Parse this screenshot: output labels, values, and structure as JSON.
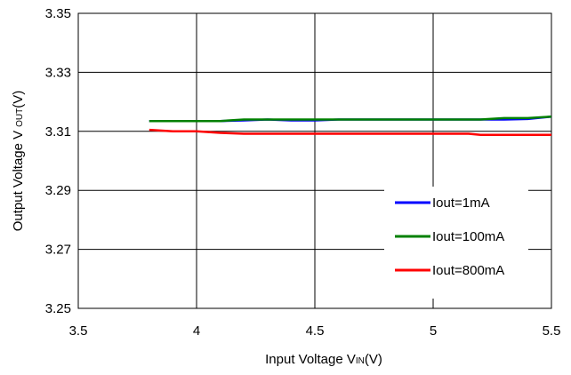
{
  "chart_data": {
    "type": "line",
    "xlabel": {
      "main": "Input Voltage V",
      "sub": "IN",
      "unit": "(V)"
    },
    "ylabel": {
      "main": "Output Voltage V",
      "sub": "OUT",
      "unit": "(V)"
    },
    "xlim": [
      3.5,
      5.5
    ],
    "ylim": [
      3.25,
      3.35
    ],
    "x_ticks": [
      3.5,
      4,
      4.5,
      5,
      5.5
    ],
    "x_tick_labels": [
      "3.5",
      "4",
      "4.5",
      "5",
      "5.5"
    ],
    "y_ticks": [
      3.25,
      3.27,
      3.29,
      3.31,
      3.33,
      3.35
    ],
    "y_tick_labels": [
      "3.25",
      "3.27",
      "3.29",
      "3.31",
      "3.33",
      "3.35"
    ],
    "grid": true,
    "legend_position": "bottom-right",
    "series": [
      {
        "name": "Iout=1mA",
        "color": "#0000ff",
        "x": [
          3.8,
          4.0,
          4.1,
          4.2,
          4.3,
          4.4,
          4.5,
          4.6,
          4.8,
          5.0,
          5.2,
          5.3,
          5.4,
          5.5
        ],
        "y": [
          3.3135,
          3.3135,
          3.3135,
          3.3137,
          3.314,
          3.3137,
          3.3137,
          3.314,
          3.314,
          3.314,
          3.314,
          3.314,
          3.3142,
          3.315
        ]
      },
      {
        "name": "Iout=100mA",
        "color": "#008000",
        "x": [
          3.8,
          4.0,
          4.1,
          4.2,
          4.3,
          4.4,
          4.5,
          4.6,
          4.8,
          5.0,
          5.2,
          5.3,
          5.4,
          5.5
        ],
        "y": [
          3.3135,
          3.3135,
          3.3135,
          3.314,
          3.314,
          3.314,
          3.314,
          3.314,
          3.314,
          3.314,
          3.314,
          3.3145,
          3.3145,
          3.315
        ]
      },
      {
        "name": "Iout=800mA",
        "color": "#ff0000",
        "x": [
          3.8,
          3.9,
          4.0,
          4.1,
          4.2,
          4.5,
          4.8,
          5.0,
          5.15,
          5.2,
          5.3,
          5.5
        ],
        "y": [
          3.3105,
          3.31,
          3.31,
          3.3095,
          3.3092,
          3.3092,
          3.3092,
          3.3092,
          3.3092,
          3.3088,
          3.3088,
          3.3088
        ]
      }
    ]
  }
}
